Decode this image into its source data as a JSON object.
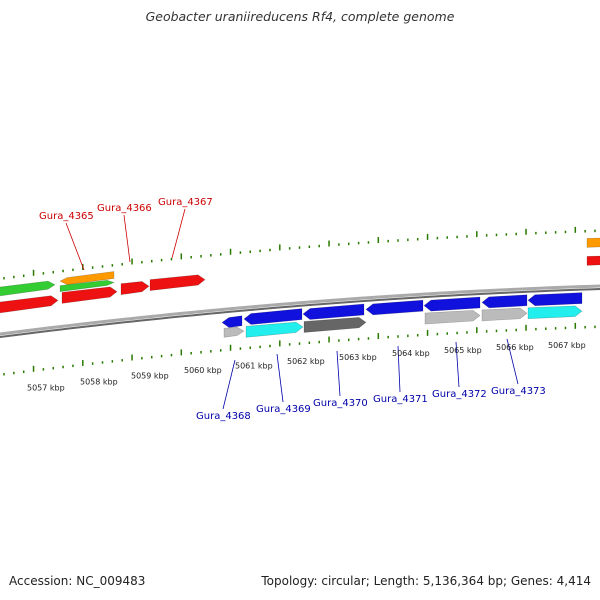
{
  "title": "Geobacter uraniireducens Rf4, complete genome",
  "footer": {
    "accession": "Accession: NC_009483",
    "topology": "Topology: circular; Length: 5,136,364 bp; Genes: 4,414"
  },
  "kbp_ticks": [
    "5057 kbp",
    "5058 kbp",
    "5059 kbp",
    "5060 kbp",
    "5061 kbp",
    "5062 kbp",
    "5063 kbp",
    "5064 kbp",
    "5065 kbp",
    "5066 kbp",
    "5067 kbp"
  ],
  "top_genes": [
    "Gura_4365",
    "Gura_4366",
    "Gura_4367"
  ],
  "bottom_genes": [
    "Gura_4368",
    "Gura_4369",
    "Gura_4370",
    "Gura_4371",
    "Gura_4372",
    "Gura_4373"
  ],
  "colors": {
    "top_label": "#cc0000",
    "bottom_label": "#0000aa",
    "tick": "#2a7a00",
    "red": "#ee1111",
    "green": "#33cc33",
    "orange": "#ff9900",
    "blue": "#1111dd",
    "cyan": "#22eeee",
    "dark_gray": "#666666",
    "light_gray": "#bbbbbb",
    "backbone": "#888888"
  }
}
